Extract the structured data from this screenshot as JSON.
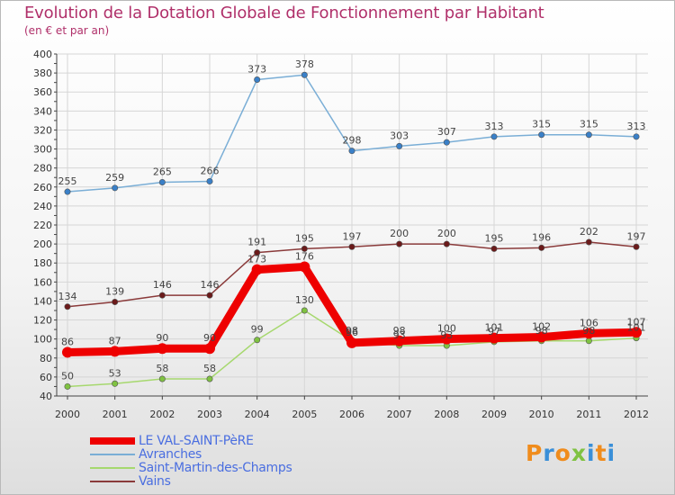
{
  "title": "Evolution de la Dotation Globale de Fonctionnement par Habitant",
  "subtitle": "(en € et par an)",
  "logo": {
    "text": "Proxiti",
    "colors": [
      "#f08c1c",
      "#3a8fd8",
      "#f08c1c",
      "#7fc241",
      "#3a8fd8",
      "#f08c1c",
      "#3a8fd8"
    ]
  },
  "chart_data": {
    "type": "line",
    "title": "Evolution de la Dotation Globale de Fonctionnement par Habitant",
    "subtitle": "(en € et par an)",
    "xlabel": "",
    "ylabel": "",
    "ylim": [
      40,
      400
    ],
    "ytick_step": 20,
    "grid": true,
    "legend_position": "bottom-left",
    "categories": [
      "2000",
      "2001",
      "2002",
      "2003",
      "2004",
      "2005",
      "2006",
      "2007",
      "2008",
      "2009",
      "2010",
      "2011",
      "2012"
    ],
    "series": [
      {
        "name": "LE VAL-SAINT-PèRE",
        "color": "#ee0000",
        "marker": "#ee0000",
        "emphasis": true,
        "values": [
          86,
          87,
          90,
          90,
          173,
          176,
          96,
          98,
          100,
          101,
          102,
          106,
          107
        ]
      },
      {
        "name": "Avranches",
        "color": "#7aaed6",
        "marker": "#3a80c8",
        "emphasis": false,
        "values": [
          255,
          259,
          265,
          266,
          373,
          378,
          298,
          303,
          307,
          313,
          315,
          315,
          313
        ]
      },
      {
        "name": "Saint-Martin-des-Champs",
        "color": "#a6d86e",
        "marker": "#7fc241",
        "emphasis": false,
        "values": [
          50,
          53,
          58,
          58,
          99,
          130,
          98,
          93,
          93,
          97,
          98,
          98,
          101
        ]
      },
      {
        "name": "Vains",
        "color": "#8a3a3a",
        "marker": "#6b1a1a",
        "emphasis": false,
        "values": [
          134,
          139,
          146,
          146,
          191,
          195,
          197,
          200,
          200,
          195,
          196,
          202,
          197
        ]
      }
    ]
  }
}
